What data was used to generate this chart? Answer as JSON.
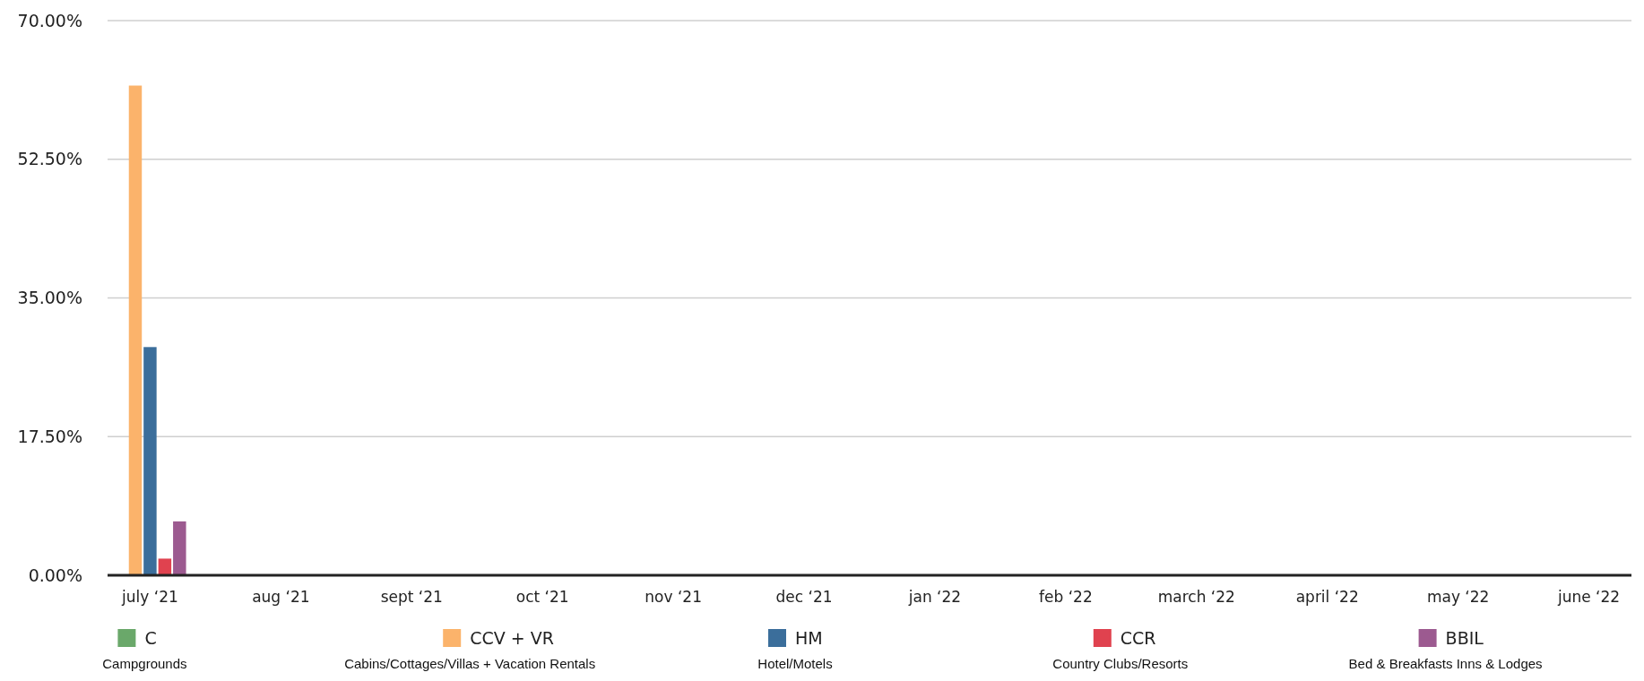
{
  "chart_data": {
    "type": "bar",
    "categories": [
      "july ‘21",
      "aug ‘21",
      "sept ‘21",
      "oct ‘21",
      "nov ‘21",
      "dec ‘21",
      "jan ‘22",
      "feb ‘22",
      "march ‘22",
      "april ‘22",
      "may ‘22",
      "june ‘22"
    ],
    "series": [
      {
        "name": "C\nCampgrounds",
        "color": "#6aa86a",
        "values": [
          0,
          null,
          null,
          null,
          null,
          null,
          null,
          null,
          null,
          null,
          null,
          null
        ]
      },
      {
        "name": "CCV + VR\nCabins/Cottages/Villas + Vacation Rentals",
        "color": "#fbb36b",
        "values": [
          61.8,
          null,
          null,
          null,
          null,
          null,
          null,
          null,
          null,
          null,
          null,
          null
        ]
      },
      {
        "name": "HM\nHotel/Motels",
        "color": "#3b6e9b",
        "values": [
          28.8,
          null,
          null,
          null,
          null,
          null,
          null,
          null,
          null,
          null,
          null,
          null
        ]
      },
      {
        "name": "CCR\nCountry Clubs/Resorts",
        "color": "#e0424f",
        "values": [
          2.1,
          null,
          null,
          null,
          null,
          null,
          null,
          null,
          null,
          null,
          null,
          null
        ]
      },
      {
        "name": "BBIL\nBed & Breakfasts Inns & Lodges",
        "color": "#9c5a90",
        "values": [
          6.8,
          null,
          null,
          null,
          null,
          null,
          null,
          null,
          null,
          null,
          null,
          null
        ]
      }
    ],
    "ylim": [
      0,
      70
    ],
    "yticks": [
      {
        "value": 0,
        "label": "0.00%"
      },
      {
        "value": 17.5,
        "label": "17.50%"
      },
      {
        "value": 35,
        "label": "35.00%"
      },
      {
        "value": 52.5,
        "label": "52.50%"
      },
      {
        "value": 70,
        "label": "70.00%"
      }
    ],
    "grid": "y",
    "legend": "bottom"
  }
}
